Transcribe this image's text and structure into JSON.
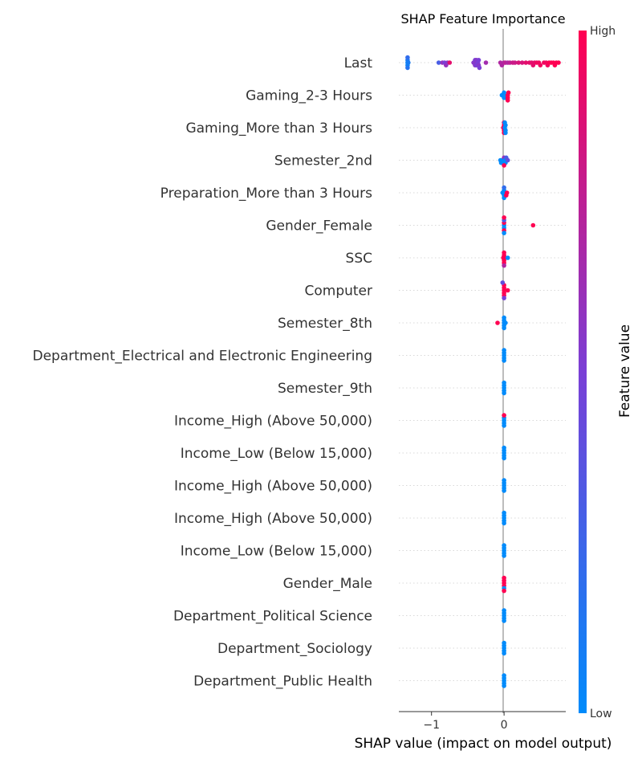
{
  "chart_data": {
    "type": "scatter",
    "subtype": "shap-beeswarm",
    "title": "SHAP Feature Importance",
    "xlabel": "SHAP value (impact on model output)",
    "xlim": [
      -1.45,
      0.85
    ],
    "xticks": [
      {
        "value": -1,
        "label": "−1"
      },
      {
        "value": 0,
        "label": "0"
      }
    ],
    "colorbar": {
      "label": "Feature value",
      "high_label": "High",
      "low_label": "Low",
      "low_color": "#008bfb",
      "high_color": "#ff0052"
    },
    "features": [
      {
        "name": "Last",
        "points": [
          [
            -1.33,
            0.0
          ],
          [
            -1.33,
            0.05
          ],
          [
            -1.33,
            0.1
          ],
          [
            -1.33,
            0.15
          ],
          [
            -1.33,
            0.2
          ],
          [
            -1.32,
            0.1
          ],
          [
            -0.9,
            0.3
          ],
          [
            -0.85,
            0.6
          ],
          [
            -0.82,
            0.5
          ],
          [
            -0.8,
            0.6
          ],
          [
            -0.78,
            0.55
          ],
          [
            -0.75,
            0.9
          ],
          [
            -0.42,
            0.55
          ],
          [
            -0.4,
            0.55
          ],
          [
            -0.4,
            0.5
          ],
          [
            -0.38,
            0.55
          ],
          [
            -0.38,
            0.5
          ],
          [
            -0.38,
            0.55
          ],
          [
            -0.36,
            0.5
          ],
          [
            -0.35,
            0.55
          ],
          [
            -0.35,
            0.5
          ],
          [
            -0.34,
            0.5
          ],
          [
            -0.25,
            0.65
          ],
          [
            -0.05,
            0.7
          ],
          [
            -0.03,
            0.7
          ],
          [
            0.0,
            0.7
          ],
          [
            0.02,
            0.75
          ],
          [
            0.05,
            0.7
          ],
          [
            0.08,
            0.75
          ],
          [
            0.12,
            0.8
          ],
          [
            0.15,
            0.8
          ],
          [
            0.2,
            0.85
          ],
          [
            0.25,
            0.85
          ],
          [
            0.3,
            0.9
          ],
          [
            0.35,
            0.9
          ],
          [
            0.38,
            0.9
          ],
          [
            0.4,
            0.9
          ],
          [
            0.42,
            0.9
          ],
          [
            0.45,
            0.95
          ],
          [
            0.48,
            0.95
          ],
          [
            0.5,
            0.95
          ],
          [
            0.55,
            0.95
          ],
          [
            0.58,
            0.95
          ],
          [
            0.6,
            0.95
          ],
          [
            0.62,
            1.0
          ],
          [
            0.65,
            1.0
          ],
          [
            0.68,
            1.0
          ],
          [
            0.7,
            1.0
          ],
          [
            0.72,
            1.0
          ],
          [
            0.75,
            1.0
          ]
        ]
      },
      {
        "name": "Gaming_2-3 Hours",
        "points": [
          [
            -0.03,
            0.0
          ],
          [
            -0.02,
            0.0
          ],
          [
            0.0,
            0.0
          ],
          [
            0.0,
            0.0
          ],
          [
            0.01,
            0.0
          ],
          [
            0.02,
            0.0
          ],
          [
            0.05,
            1.0
          ],
          [
            0.05,
            1.0
          ],
          [
            0.06,
            1.0
          ],
          [
            0.05,
            1.0
          ]
        ]
      },
      {
        "name": "Gaming_More than 3 Hours",
        "points": [
          [
            -0.01,
            1.0
          ],
          [
            0.0,
            1.0
          ],
          [
            0.0,
            1.0
          ],
          [
            0.0,
            1.0
          ],
          [
            0.0,
            1.0
          ],
          [
            0.01,
            0.0
          ],
          [
            0.02,
            0.0
          ],
          [
            0.02,
            0.0
          ],
          [
            0.02,
            0.0
          ],
          [
            0.01,
            0.0
          ]
        ]
      },
      {
        "name": "Semester_2nd",
        "points": [
          [
            -0.05,
            0.0
          ],
          [
            -0.04,
            0.0
          ],
          [
            -0.02,
            0.0
          ],
          [
            0.0,
            0.0
          ],
          [
            0.0,
            0.6
          ],
          [
            0.01,
            0.0
          ],
          [
            0.02,
            0.0
          ],
          [
            0.03,
            0.3
          ],
          [
            0.05,
            0.4
          ],
          [
            0.0,
            1.0
          ]
        ]
      },
      {
        "name": "Preparation_More than 3 Hours",
        "points": [
          [
            -0.02,
            0.0
          ],
          [
            0.0,
            0.0
          ],
          [
            0.0,
            0.0
          ],
          [
            0.0,
            0.0
          ],
          [
            0.01,
            0.0
          ],
          [
            0.0,
            0.2
          ],
          [
            0.03,
            1.0
          ],
          [
            0.04,
            1.0
          ]
        ]
      },
      {
        "name": "Gender_Female",
        "points": [
          [
            0.0,
            0.0
          ],
          [
            0.0,
            0.0
          ],
          [
            0.0,
            1.0
          ],
          [
            0.0,
            1.0
          ],
          [
            0.0,
            0.3
          ],
          [
            0.0,
            0.0
          ],
          [
            0.0,
            1.0
          ],
          [
            0.4,
            1.0
          ]
        ]
      },
      {
        "name": "SSC",
        "points": [
          [
            -0.01,
            1.0
          ],
          [
            0.0,
            1.0
          ],
          [
            0.0,
            1.0
          ],
          [
            0.0,
            1.0
          ],
          [
            0.0,
            1.0
          ],
          [
            0.01,
            1.0
          ],
          [
            0.0,
            0.7
          ],
          [
            0.05,
            0.0
          ]
        ]
      },
      {
        "name": "Computer",
        "points": [
          [
            0.0,
            1.0
          ],
          [
            0.0,
            1.0
          ],
          [
            0.0,
            1.0
          ],
          [
            0.0,
            1.0
          ],
          [
            0.0,
            1.0
          ],
          [
            0.0,
            0.5
          ],
          [
            0.05,
            1.0
          ],
          [
            -0.02,
            0.4
          ]
        ]
      },
      {
        "name": "Semester_8th",
        "points": [
          [
            -0.09,
            1.0
          ],
          [
            0.0,
            0.0
          ],
          [
            0.0,
            0.0
          ],
          [
            0.0,
            0.0
          ],
          [
            0.0,
            0.0
          ],
          [
            0.0,
            0.0
          ],
          [
            0.02,
            0.0
          ]
        ]
      },
      {
        "name": "Department_Electrical and Electronic Engineering",
        "points": [
          [
            0.0,
            0.0
          ],
          [
            0.0,
            0.0
          ],
          [
            0.0,
            0.0
          ],
          [
            0.0,
            0.0
          ],
          [
            0.0,
            0.0
          ]
        ]
      },
      {
        "name": "Semester_9th",
        "points": [
          [
            0.0,
            0.0
          ],
          [
            0.0,
            0.0
          ],
          [
            0.0,
            0.0
          ],
          [
            0.0,
            0.0
          ],
          [
            0.0,
            0.0
          ]
        ]
      },
      {
        "name": "Income_High (Above 50,000)",
        "points": [
          [
            0.0,
            0.0
          ],
          [
            0.0,
            0.0
          ],
          [
            0.0,
            0.0
          ],
          [
            0.0,
            0.0
          ],
          [
            0.0,
            1.0
          ]
        ]
      },
      {
        "name": "Income_Low (Below 15,000)",
        "points": [
          [
            0.0,
            0.0
          ],
          [
            0.0,
            0.0
          ],
          [
            0.0,
            0.0
          ],
          [
            0.0,
            0.0
          ],
          [
            0.0,
            0.0
          ]
        ]
      },
      {
        "name": "Income_High (Above 50,000)",
        "points": [
          [
            0.0,
            0.0
          ],
          [
            0.0,
            0.0
          ],
          [
            0.0,
            0.0
          ],
          [
            0.0,
            0.0
          ],
          [
            0.0,
            0.0
          ]
        ]
      },
      {
        "name": "Income_High (Above 50,000)",
        "points": [
          [
            0.0,
            0.0
          ],
          [
            0.0,
            0.0
          ],
          [
            0.0,
            0.0
          ],
          [
            0.0,
            0.0
          ],
          [
            0.0,
            0.0
          ]
        ]
      },
      {
        "name": "Income_Low (Below 15,000)",
        "points": [
          [
            0.0,
            0.0
          ],
          [
            0.0,
            0.0
          ],
          [
            0.0,
            0.0
          ],
          [
            0.0,
            0.0
          ],
          [
            0.0,
            0.0
          ]
        ]
      },
      {
        "name": "Gender_Male",
        "points": [
          [
            0.0,
            1.0
          ],
          [
            0.0,
            1.0
          ],
          [
            0.0,
            1.0
          ],
          [
            0.0,
            0.0
          ],
          [
            0.0,
            1.0
          ],
          [
            0.0,
            1.0
          ]
        ]
      },
      {
        "name": "Department_Political Science",
        "points": [
          [
            0.0,
            0.0
          ],
          [
            0.0,
            0.0
          ],
          [
            0.0,
            0.0
          ],
          [
            0.0,
            0.0
          ],
          [
            0.0,
            0.0
          ]
        ]
      },
      {
        "name": "Department_Sociology",
        "points": [
          [
            0.0,
            0.0
          ],
          [
            0.0,
            0.0
          ],
          [
            0.0,
            0.0
          ],
          [
            0.0,
            0.0
          ],
          [
            0.0,
            0.0
          ]
        ]
      },
      {
        "name": "Department_Public Health",
        "points": [
          [
            0.0,
            0.0
          ],
          [
            0.0,
            0.0
          ],
          [
            0.0,
            0.0
          ],
          [
            0.0,
            0.0
          ],
          [
            0.0,
            0.0
          ]
        ]
      }
    ]
  }
}
